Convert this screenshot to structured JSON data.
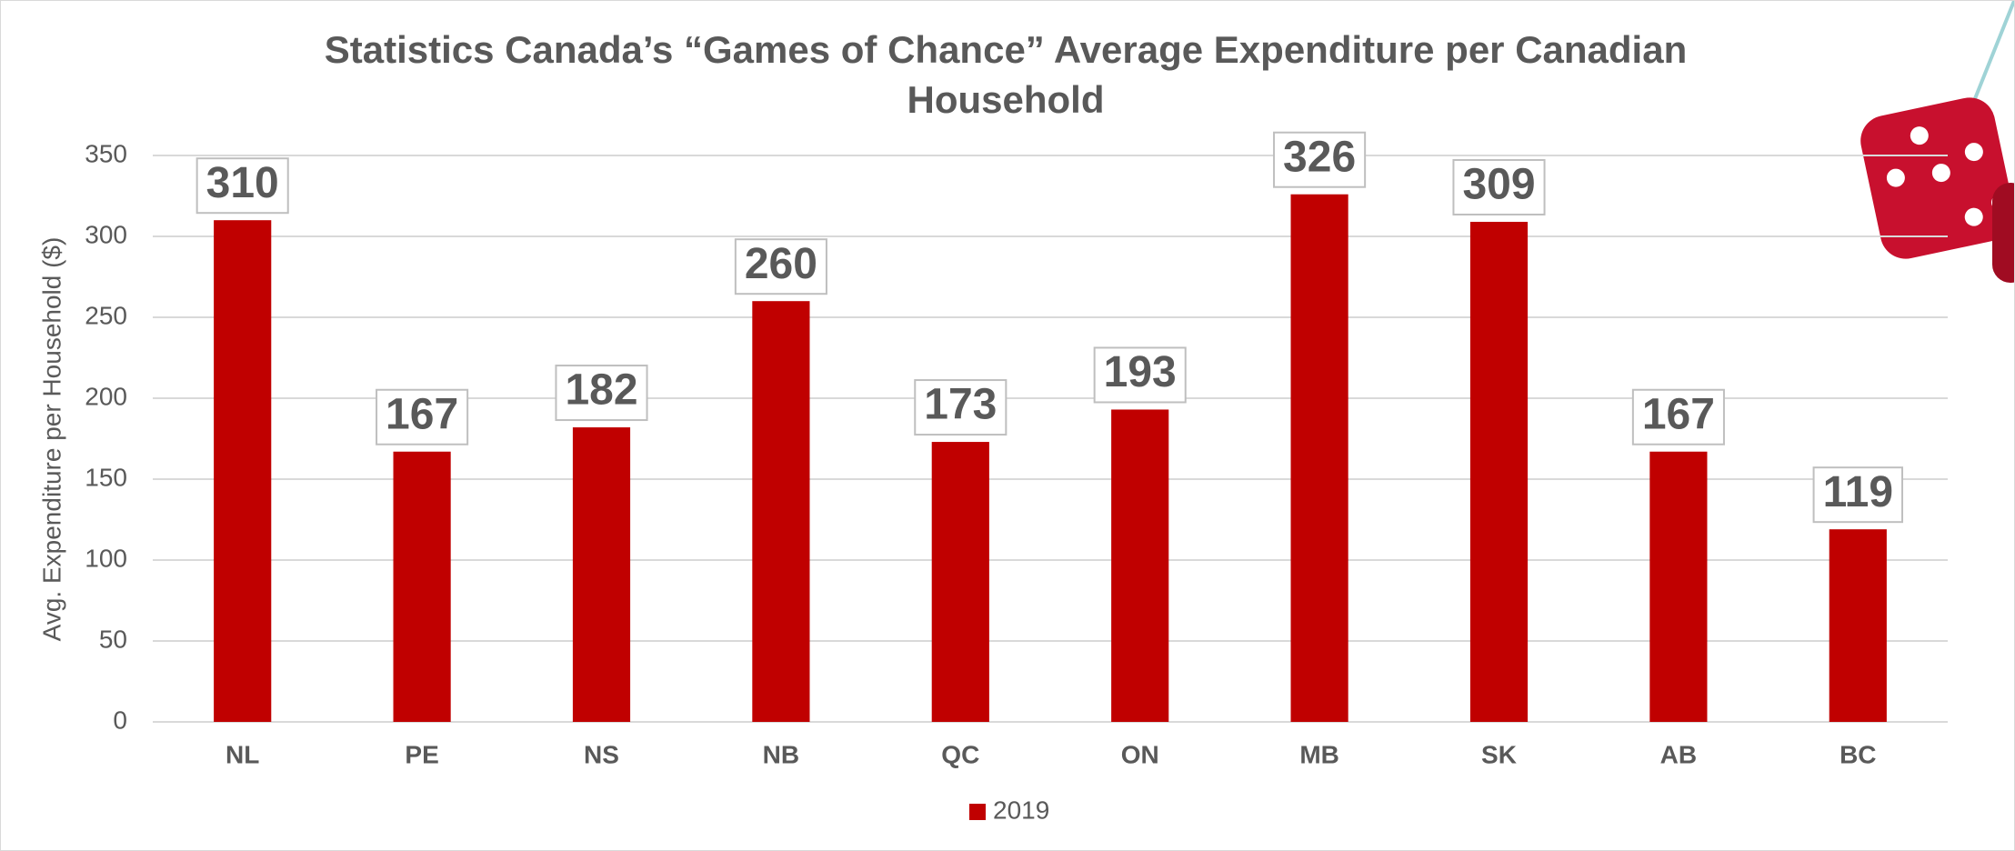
{
  "chart_data": {
    "type": "bar",
    "title": "Statistics Canada’s “Games of Chance” Average Expenditure per Canadian Household",
    "y_label": "Avg. Expenditure per Household ($)",
    "categories": [
      "NL",
      "PE",
      "NS",
      "NB",
      "QC",
      "ON",
      "MB",
      "SK",
      "AB",
      "BC"
    ],
    "series": [
      {
        "name": "2019",
        "color": "#c00000",
        "values": [
          310,
          167,
          182,
          260,
          173,
          193,
          326,
          309,
          167,
          119
        ]
      }
    ],
    "ylim": [
      0,
      350
    ],
    "yticks": [
      0,
      50,
      100,
      150,
      200,
      250,
      300,
      350
    ],
    "grid": true,
    "legend": "bottom"
  }
}
